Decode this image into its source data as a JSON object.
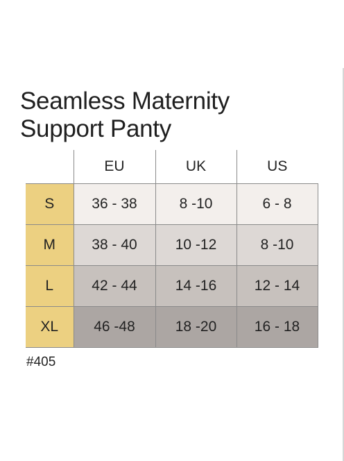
{
  "title": {
    "line1": "Seamless Maternity",
    "line2": "Support Panty"
  },
  "table": {
    "columns": [
      "EU",
      "UK",
      "US"
    ],
    "rows": [
      {
        "size": "S",
        "eu": "36 - 38",
        "uk": "8 -10",
        "us": "6 - 8"
      },
      {
        "size": "M",
        "eu": "38 - 40",
        "uk": "10 -12",
        "us": "8 -10"
      },
      {
        "size": "L",
        "eu": "42 - 44",
        "uk": "14 -16",
        "us": "12 - 14"
      },
      {
        "size": "XL",
        "eu": "46 -48",
        "uk": "18 -20",
        "us": "16 - 18"
      }
    ]
  },
  "product_code": "#405",
  "colors": {
    "size_column": "#ecd081",
    "row_shades": [
      "#f3efec",
      "#ddd8d5",
      "#c7c1bd",
      "#aca6a3"
    ],
    "grid_lines": "#8a8a8a"
  }
}
